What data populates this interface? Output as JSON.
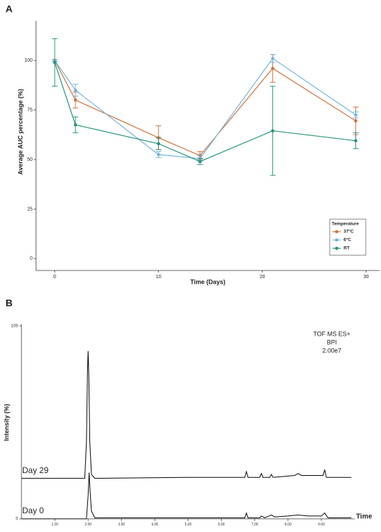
{
  "chart_data": [
    {
      "type": "line",
      "panel_label": "A",
      "xlabel": "Time (Days)",
      "ylabel": "Average AUC percentage (%)",
      "x": [
        0,
        2,
        10,
        14,
        21,
        29
      ],
      "xlim": [
        -1.8,
        31.3
      ],
      "xticks": [
        0,
        10,
        20,
        30
      ],
      "ylim": [
        -6,
        120
      ],
      "yticks": [
        0,
        25,
        50,
        75,
        100
      ],
      "legend": {
        "title": "Temperature",
        "position": "lower right"
      },
      "series": [
        {
          "name": "37°C",
          "color": "#d0703c",
          "values": [
            100,
            80,
            61,
            52,
            96,
            69.5
          ],
          "errors": [
            0.5,
            4,
            6,
            2,
            7,
            7
          ]
        },
        {
          "name": "6°C",
          "color": "#72b6dc",
          "values": [
            100,
            85,
            52.5,
            50.5,
            101,
            72.5
          ],
          "errors": [
            0.5,
            3,
            1.5,
            1.5,
            2,
            1.5
          ]
        },
        {
          "name": "RT",
          "color": "#24937a",
          "values": [
            99,
            67.5,
            58,
            49,
            64.5,
            59.5
          ],
          "errors": [
            12,
            4,
            3,
            1.5,
            22.5,
            4
          ]
        }
      ]
    },
    {
      "type": "chromatogram",
      "panel_label": "B",
      "xlabel": "Time",
      "ylabel": "Intensity (%)",
      "annotations": [
        "TOF MS ES+",
        "BPI",
        "2.00e7"
      ],
      "xlim": [
        0,
        10
      ],
      "xticks": [
        {
          "value": 1,
          "label": "1.00"
        },
        {
          "value": 2,
          "label": "2.00"
        },
        {
          "value": 3,
          "label": "3.00"
        },
        {
          "value": 4,
          "label": "4.00"
        },
        {
          "value": 5,
          "label": "5.00"
        },
        {
          "value": 6,
          "label": "6.00"
        },
        {
          "value": 7,
          "label": "7.00"
        },
        {
          "value": 8,
          "label": "8.00"
        },
        {
          "value": 9,
          "label": "9.00"
        }
      ],
      "ylim": [
        0,
        100
      ],
      "yticks": [
        0,
        100
      ],
      "series": [
        {
          "name": "Day 29",
          "color": "#000000",
          "x": [
            0,
            1.9,
            1.95,
            1.98,
            2.0,
            2.02,
            2.05,
            2.1,
            2.2,
            5.0,
            5.4,
            6.3,
            6.7,
            6.75,
            6.8,
            7.15,
            7.2,
            7.25,
            7.45,
            7.5,
            7.55,
            8.2,
            8.3,
            8.4,
            8.9,
            9.05,
            9.1,
            9.15,
            9.9
          ],
          "values": [
            21,
            21,
            40,
            75,
            87,
            75,
            40,
            23,
            21,
            21.5,
            21.5,
            21.5,
            21.5,
            24.5,
            21.5,
            21.5,
            23.5,
            21.5,
            21.5,
            23,
            21.5,
            22.5,
            23.5,
            22.5,
            22.5,
            22.5,
            25.5,
            21.5,
            21.5
          ]
        },
        {
          "name": "Day 0",
          "color": "#000000",
          "x": [
            0,
            1.95,
            2.0,
            2.03,
            2.06,
            2.1,
            2.2,
            6.7,
            6.75,
            6.8,
            7.15,
            7.2,
            7.3,
            7.5,
            7.6,
            8.0,
            8.3,
            8.6,
            9.0,
            9.1,
            9.2,
            9.9
          ],
          "values": [
            0,
            0,
            12,
            24,
            14,
            4,
            0.5,
            0.5,
            3,
            0.5,
            0.5,
            1.5,
            0.5,
            2,
            1,
            1.5,
            2,
            1.5,
            1.5,
            3,
            0.5,
            0.5
          ]
        }
      ]
    }
  ]
}
